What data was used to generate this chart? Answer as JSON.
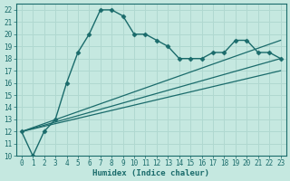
{
  "xlabel": "Humidex (Indice chaleur)",
  "xlim": [
    -0.5,
    23.5
  ],
  "ylim": [
    10,
    22.5
  ],
  "yticks": [
    10,
    11,
    12,
    13,
    14,
    15,
    16,
    17,
    18,
    19,
    20,
    21,
    22
  ],
  "xticks": [
    0,
    1,
    2,
    3,
    4,
    5,
    6,
    7,
    8,
    9,
    10,
    11,
    12,
    13,
    14,
    15,
    16,
    17,
    18,
    19,
    20,
    21,
    22,
    23
  ],
  "bg_color": "#c5e8e0",
  "line_color": "#1a6b6b",
  "grid_color": "#b0d8d0",
  "series_main": {
    "x": [
      0,
      1,
      2,
      3,
      4,
      5,
      6,
      7,
      8,
      9,
      10,
      11,
      12,
      13,
      14,
      15,
      16,
      17,
      18,
      19,
      20,
      21,
      22,
      23
    ],
    "y": [
      12,
      10,
      12,
      13,
      16,
      18.5,
      20,
      22,
      22,
      21.5,
      20,
      20,
      19.5,
      19,
      18,
      18,
      18,
      18.5,
      18.5,
      19.5,
      19.5,
      18.5,
      18.5,
      18
    ],
    "marker": "D",
    "markersize": 2.5,
    "linewidth": 1.0
  },
  "series_lines": [
    {
      "x": [
        0,
        23
      ],
      "y": [
        12,
        18
      ],
      "linewidth": 0.9
    },
    {
      "x": [
        0,
        23
      ],
      "y": [
        12,
        17.0
      ],
      "linewidth": 0.9
    },
    {
      "x": [
        0,
        23
      ],
      "y": [
        12,
        19.5
      ],
      "linewidth": 0.9
    }
  ]
}
